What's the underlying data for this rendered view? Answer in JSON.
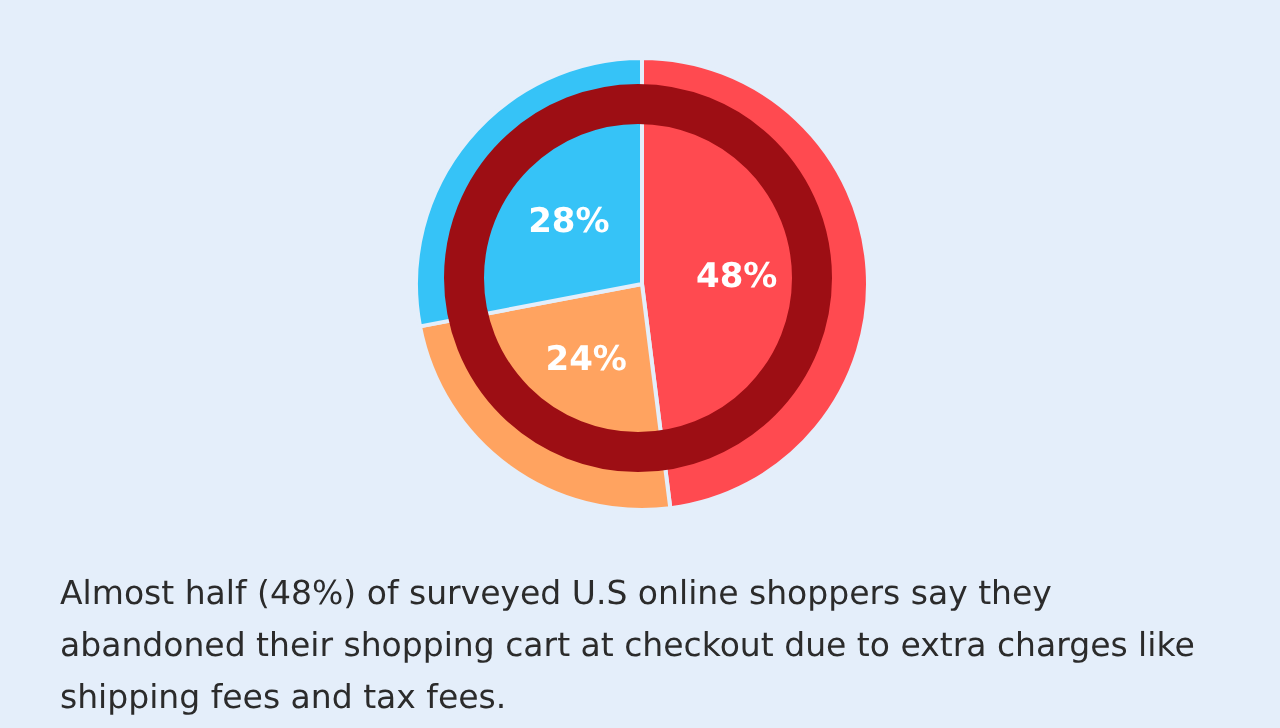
{
  "chart_data": {
    "type": "pie",
    "categories": [
      null,
      null,
      null
    ],
    "values": [
      48,
      24,
      28
    ],
    "colors": [
      "#ff4a50",
      "#ffa360",
      "#36c3f7"
    ],
    "value_labels": [
      "48%",
      "24%",
      "28%"
    ],
    "legend": false,
    "annotations": [
      "Almost half (48%) of surveyed U.S online shoppers say they abandoned their shopping cart at checkout due to extra charges like shipping fees and tax fees."
    ]
  }
}
